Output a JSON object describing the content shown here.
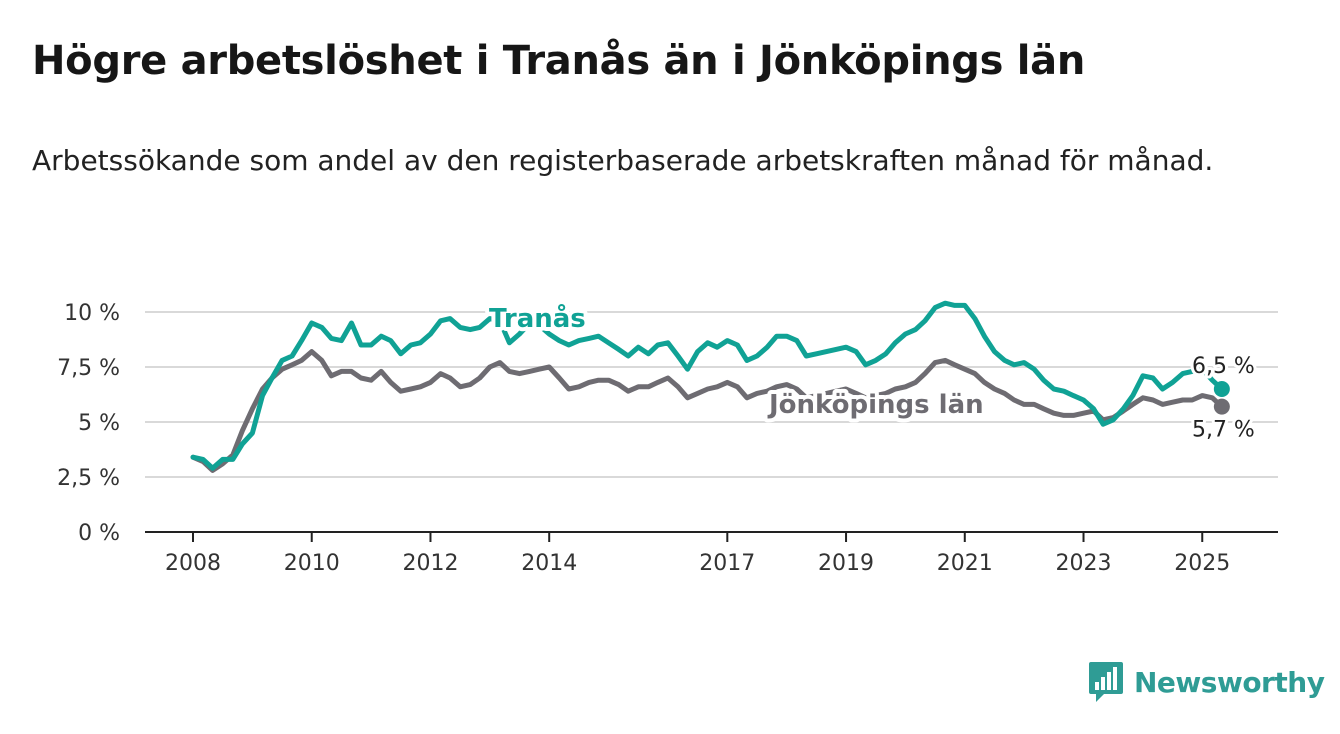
{
  "title": "Högre arbetslöshet i Tranås än i Jönköpings län",
  "subtitle": "Arbetssökande som andel av den registerbaserade arbetskraften månad för månad.",
  "brand": {
    "name": "Newsworthy"
  },
  "colors": {
    "tranas": "#10a295",
    "lan": "#6e6c72",
    "grid": "#d9d9d9",
    "axis": "#222222",
    "brand": "#2f9c95"
  },
  "chart_data": {
    "type": "line",
    "title": "Högre arbetslöshet i Tranås än i Jönköpings län",
    "subtitle": "Arbetssökande som andel av den registerbaserade arbetskraften månad för månad.",
    "xlabel": "",
    "ylabel": "",
    "xlim": [
      2008.0,
      2025.4
    ],
    "ylim": [
      0,
      10
    ],
    "y_ticks": [
      0,
      2.5,
      5,
      7.5,
      10
    ],
    "y_tick_labels": [
      "0 %",
      "2,5 %",
      "5 %",
      "7,5 %",
      "10 %"
    ],
    "x_ticks": [
      2008,
      2010,
      2012,
      2014,
      2017,
      2019,
      2021,
      2023,
      2025
    ],
    "x_tick_labels": [
      "2008",
      "2010",
      "2012",
      "2014",
      "2017",
      "2019",
      "2021",
      "2023",
      "2025"
    ],
    "grid": true,
    "legend": "inline labels",
    "series": [
      {
        "name": "Tranås",
        "color": "#10a295",
        "end_label": "6,5 %",
        "end_value": 6.5,
        "points": [
          [
            2008.0,
            3.4
          ],
          [
            2008.17,
            3.3
          ],
          [
            2008.33,
            2.9
          ],
          [
            2008.5,
            3.3
          ],
          [
            2008.67,
            3.3
          ],
          [
            2008.83,
            4.0
          ],
          [
            2009.0,
            4.5
          ],
          [
            2009.17,
            6.2
          ],
          [
            2009.33,
            7.0
          ],
          [
            2009.5,
            7.8
          ],
          [
            2009.67,
            8.0
          ],
          [
            2009.83,
            8.7
          ],
          [
            2010.0,
            9.5
          ],
          [
            2010.17,
            9.3
          ],
          [
            2010.33,
            8.8
          ],
          [
            2010.5,
            8.7
          ],
          [
            2010.67,
            9.5
          ],
          [
            2010.83,
            8.5
          ],
          [
            2011.0,
            8.5
          ],
          [
            2011.17,
            8.9
          ],
          [
            2011.33,
            8.7
          ],
          [
            2011.5,
            8.1
          ],
          [
            2011.67,
            8.5
          ],
          [
            2011.83,
            8.6
          ],
          [
            2012.0,
            9.0
          ],
          [
            2012.17,
            9.6
          ],
          [
            2012.33,
            9.7
          ],
          [
            2012.5,
            9.3
          ],
          [
            2012.67,
            9.2
          ],
          [
            2012.83,
            9.3
          ],
          [
            2013.0,
            9.7
          ],
          [
            2013.17,
            9.6
          ],
          [
            2013.33,
            8.6
          ],
          [
            2013.5,
            9.0
          ],
          [
            2013.67,
            9.5
          ],
          [
            2013.83,
            9.4
          ],
          [
            2014.0,
            9.0
          ],
          [
            2014.17,
            8.7
          ],
          [
            2014.33,
            8.5
          ],
          [
            2014.5,
            8.7
          ],
          [
            2014.67,
            8.8
          ],
          [
            2014.83,
            8.9
          ],
          [
            2015.0,
            8.6
          ],
          [
            2015.17,
            8.3
          ],
          [
            2015.33,
            8.0
          ],
          [
            2015.5,
            8.4
          ],
          [
            2015.67,
            8.1
          ],
          [
            2015.83,
            8.5
          ],
          [
            2016.0,
            8.6
          ],
          [
            2016.17,
            8.0
          ],
          [
            2016.33,
            7.4
          ],
          [
            2016.5,
            8.2
          ],
          [
            2016.67,
            8.6
          ],
          [
            2016.83,
            8.4
          ],
          [
            2017.0,
            8.7
          ],
          [
            2017.17,
            8.5
          ],
          [
            2017.33,
            7.8
          ],
          [
            2017.5,
            8.0
          ],
          [
            2017.67,
            8.4
          ],
          [
            2017.83,
            8.9
          ],
          [
            2018.0,
            8.9
          ],
          [
            2018.17,
            8.7
          ],
          [
            2018.33,
            8.0
          ],
          [
            2018.5,
            8.1
          ],
          [
            2018.67,
            8.2
          ],
          [
            2018.83,
            8.3
          ],
          [
            2019.0,
            8.4
          ],
          [
            2019.17,
            8.2
          ],
          [
            2019.33,
            7.6
          ],
          [
            2019.5,
            7.8
          ],
          [
            2019.67,
            8.1
          ],
          [
            2019.83,
            8.6
          ],
          [
            2020.0,
            9.0
          ],
          [
            2020.17,
            9.2
          ],
          [
            2020.33,
            9.6
          ],
          [
            2020.5,
            10.2
          ],
          [
            2020.67,
            10.4
          ],
          [
            2020.83,
            10.3
          ],
          [
            2021.0,
            10.3
          ],
          [
            2021.17,
            9.7
          ],
          [
            2021.33,
            8.9
          ],
          [
            2021.5,
            8.2
          ],
          [
            2021.67,
            7.8
          ],
          [
            2021.83,
            7.6
          ],
          [
            2022.0,
            7.7
          ],
          [
            2022.17,
            7.4
          ],
          [
            2022.33,
            6.9
          ],
          [
            2022.5,
            6.5
          ],
          [
            2022.67,
            6.4
          ],
          [
            2022.83,
            6.2
          ],
          [
            2023.0,
            6.0
          ],
          [
            2023.17,
            5.6
          ],
          [
            2023.33,
            4.9
          ],
          [
            2023.5,
            5.1
          ],
          [
            2023.67,
            5.6
          ],
          [
            2023.83,
            6.2
          ],
          [
            2024.0,
            7.1
          ],
          [
            2024.17,
            7.0
          ],
          [
            2024.33,
            6.5
          ],
          [
            2024.5,
            6.8
          ],
          [
            2024.67,
            7.2
          ],
          [
            2024.83,
            7.3
          ],
          [
            2025.0,
            7.4
          ],
          [
            2025.17,
            6.9
          ],
          [
            2025.33,
            6.5
          ]
        ]
      },
      {
        "name": "Jönköpings län",
        "color": "#6e6c72",
        "end_label": "5,7 %",
        "end_value": 5.7,
        "points": [
          [
            2008.0,
            3.4
          ],
          [
            2008.17,
            3.2
          ],
          [
            2008.33,
            2.8
          ],
          [
            2008.5,
            3.1
          ],
          [
            2008.67,
            3.5
          ],
          [
            2008.83,
            4.6
          ],
          [
            2009.0,
            5.6
          ],
          [
            2009.17,
            6.5
          ],
          [
            2009.33,
            7.0
          ],
          [
            2009.5,
            7.4
          ],
          [
            2009.67,
            7.6
          ],
          [
            2009.83,
            7.8
          ],
          [
            2010.0,
            8.2
          ],
          [
            2010.17,
            7.8
          ],
          [
            2010.33,
            7.1
          ],
          [
            2010.5,
            7.3
          ],
          [
            2010.67,
            7.3
          ],
          [
            2010.83,
            7.0
          ],
          [
            2011.0,
            6.9
          ],
          [
            2011.17,
            7.3
          ],
          [
            2011.33,
            6.8
          ],
          [
            2011.5,
            6.4
          ],
          [
            2011.67,
            6.5
          ],
          [
            2011.83,
            6.6
          ],
          [
            2012.0,
            6.8
          ],
          [
            2012.17,
            7.2
          ],
          [
            2012.33,
            7.0
          ],
          [
            2012.5,
            6.6
          ],
          [
            2012.67,
            6.7
          ],
          [
            2012.83,
            7.0
          ],
          [
            2013.0,
            7.5
          ],
          [
            2013.17,
            7.7
          ],
          [
            2013.33,
            7.3
          ],
          [
            2013.5,
            7.2
          ],
          [
            2013.67,
            7.3
          ],
          [
            2013.83,
            7.4
          ],
          [
            2014.0,
            7.5
          ],
          [
            2014.17,
            7.0
          ],
          [
            2014.33,
            6.5
          ],
          [
            2014.5,
            6.6
          ],
          [
            2014.67,
            6.8
          ],
          [
            2014.83,
            6.9
          ],
          [
            2015.0,
            6.9
          ],
          [
            2015.17,
            6.7
          ],
          [
            2015.33,
            6.4
          ],
          [
            2015.5,
            6.6
          ],
          [
            2015.67,
            6.6
          ],
          [
            2015.83,
            6.8
          ],
          [
            2016.0,
            7.0
          ],
          [
            2016.17,
            6.6
          ],
          [
            2016.33,
            6.1
          ],
          [
            2016.5,
            6.3
          ],
          [
            2016.67,
            6.5
          ],
          [
            2016.83,
            6.6
          ],
          [
            2017.0,
            6.8
          ],
          [
            2017.17,
            6.6
          ],
          [
            2017.33,
            6.1
          ],
          [
            2017.5,
            6.3
          ],
          [
            2017.67,
            6.4
          ],
          [
            2017.83,
            6.6
          ],
          [
            2018.0,
            6.7
          ],
          [
            2018.17,
            6.5
          ],
          [
            2018.33,
            6.1
          ],
          [
            2018.5,
            6.2
          ],
          [
            2018.67,
            6.3
          ],
          [
            2018.83,
            6.4
          ],
          [
            2019.0,
            6.5
          ],
          [
            2019.17,
            6.3
          ],
          [
            2019.33,
            6.1
          ],
          [
            2019.5,
            6.2
          ],
          [
            2019.67,
            6.3
          ],
          [
            2019.83,
            6.5
          ],
          [
            2020.0,
            6.6
          ],
          [
            2020.17,
            6.8
          ],
          [
            2020.33,
            7.2
          ],
          [
            2020.5,
            7.7
          ],
          [
            2020.67,
            7.8
          ],
          [
            2020.83,
            7.6
          ],
          [
            2021.0,
            7.4
          ],
          [
            2021.17,
            7.2
          ],
          [
            2021.33,
            6.8
          ],
          [
            2021.5,
            6.5
          ],
          [
            2021.67,
            6.3
          ],
          [
            2021.83,
            6.0
          ],
          [
            2022.0,
            5.8
          ],
          [
            2022.17,
            5.8
          ],
          [
            2022.33,
            5.6
          ],
          [
            2022.5,
            5.4
          ],
          [
            2022.67,
            5.3
          ],
          [
            2022.83,
            5.3
          ],
          [
            2023.0,
            5.4
          ],
          [
            2023.17,
            5.5
          ],
          [
            2023.33,
            5.1
          ],
          [
            2023.5,
            5.2
          ],
          [
            2023.67,
            5.5
          ],
          [
            2023.83,
            5.8
          ],
          [
            2024.0,
            6.1
          ],
          [
            2024.17,
            6.0
          ],
          [
            2024.33,
            5.8
          ],
          [
            2024.5,
            5.9
          ],
          [
            2024.67,
            6.0
          ],
          [
            2024.83,
            6.0
          ],
          [
            2025.0,
            6.2
          ],
          [
            2025.17,
            6.1
          ],
          [
            2025.33,
            5.7
          ]
        ]
      }
    ]
  }
}
